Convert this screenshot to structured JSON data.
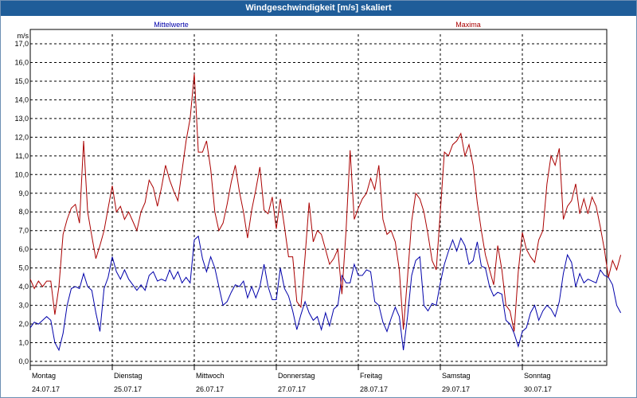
{
  "window": {
    "title": "Windgeschwindigkeit [m/s] skaliert"
  },
  "chart_data": {
    "type": "line",
    "unit_label": "m/s",
    "ylim": [
      0,
      17.5
    ],
    "yticks": [
      0,
      1,
      2,
      3,
      4,
      5,
      6,
      7,
      8,
      9,
      10,
      11,
      12,
      13,
      14,
      15,
      16,
      17
    ],
    "ytick_labels": [
      "0,0",
      "1,0",
      "2,0",
      "3,0",
      "4,0",
      "5,0",
      "6,0",
      "7,0",
      "8,0",
      "9,0",
      "10,0",
      "11,0",
      "12,0",
      "13,0",
      "14,0",
      "15,0",
      "16,0",
      "17,0"
    ],
    "xlim": [
      0,
      7.2
    ],
    "x_labels": [
      {
        "day": "Montag",
        "date": "24.07.17"
      },
      {
        "day": "Dienstag",
        "date": "25.07.17"
      },
      {
        "day": "Mittwoch",
        "date": "26.07.17"
      },
      {
        "day": "Donnerstag",
        "date": "27.07.17"
      },
      {
        "day": "Freitag",
        "date": "28.07.17"
      },
      {
        "day": "Samstag",
        "date": "29.07.17"
      },
      {
        "day": "Sonntag",
        "date": "30.07.17"
      }
    ],
    "grid": true,
    "colors": {
      "mittelwerte": "#0000aa",
      "maxima": "#aa0000",
      "grid": "#000000"
    },
    "series": [
      {
        "name": "Mittelwerte",
        "color": "#0000aa",
        "points": [
          [
            0,
            1.8
          ],
          [
            0.05,
            2.1
          ],
          [
            0.1,
            2.0
          ],
          [
            0.15,
            2.2
          ],
          [
            0.2,
            2.4
          ],
          [
            0.25,
            2.2
          ],
          [
            0.3,
            1.0
          ],
          [
            0.35,
            0.6
          ],
          [
            0.4,
            1.5
          ],
          [
            0.45,
            3.0
          ],
          [
            0.5,
            3.9
          ],
          [
            0.55,
            4.0
          ],
          [
            0.6,
            3.9
          ],
          [
            0.65,
            4.7
          ],
          [
            0.7,
            4.0
          ],
          [
            0.75,
            3.8
          ],
          [
            0.8,
            2.6
          ],
          [
            0.85,
            1.6
          ],
          [
            0.9,
            3.9
          ],
          [
            0.95,
            4.5
          ],
          [
            1.0,
            5.6
          ],
          [
            1.05,
            4.8
          ],
          [
            1.1,
            4.4
          ],
          [
            1.15,
            4.9
          ],
          [
            1.2,
            4.4
          ],
          [
            1.25,
            4.1
          ],
          [
            1.3,
            3.8
          ],
          [
            1.35,
            4.1
          ],
          [
            1.4,
            3.8
          ],
          [
            1.45,
            4.6
          ],
          [
            1.5,
            4.8
          ],
          [
            1.55,
            4.3
          ],
          [
            1.6,
            4.4
          ],
          [
            1.65,
            4.3
          ],
          [
            1.7,
            4.9
          ],
          [
            1.75,
            4.4
          ],
          [
            1.8,
            4.8
          ],
          [
            1.85,
            4.2
          ],
          [
            1.9,
            4.5
          ],
          [
            1.95,
            4.2
          ],
          [
            2.0,
            6.5
          ],
          [
            2.05,
            6.7
          ],
          [
            2.1,
            5.5
          ],
          [
            2.15,
            4.8
          ],
          [
            2.2,
            5.6
          ],
          [
            2.25,
            5.0
          ],
          [
            2.3,
            4.0
          ],
          [
            2.35,
            3.0
          ],
          [
            2.4,
            3.2
          ],
          [
            2.45,
            3.7
          ],
          [
            2.5,
            4.1
          ],
          [
            2.55,
            4.0
          ],
          [
            2.6,
            4.3
          ],
          [
            2.65,
            3.4
          ],
          [
            2.7,
            4.0
          ],
          [
            2.75,
            3.4
          ],
          [
            2.8,
            4.0
          ],
          [
            2.85,
            5.2
          ],
          [
            2.9,
            4.0
          ],
          [
            2.95,
            3.3
          ],
          [
            3.0,
            3.3
          ],
          [
            3.05,
            5.0
          ],
          [
            3.1,
            3.9
          ],
          [
            3.15,
            3.5
          ],
          [
            3.2,
            2.7
          ],
          [
            3.25,
            1.7
          ],
          [
            3.3,
            2.5
          ],
          [
            3.35,
            3.2
          ],
          [
            3.4,
            2.6
          ],
          [
            3.45,
            2.2
          ],
          [
            3.5,
            2.4
          ],
          [
            3.55,
            1.7
          ],
          [
            3.6,
            2.6
          ],
          [
            3.65,
            1.9
          ],
          [
            3.7,
            2.8
          ],
          [
            3.75,
            3.0
          ],
          [
            3.8,
            4.6
          ],
          [
            3.85,
            4.2
          ],
          [
            3.9,
            4.2
          ],
          [
            3.95,
            5.2
          ],
          [
            4.0,
            4.6
          ],
          [
            4.05,
            4.6
          ],
          [
            4.1,
            4.9
          ],
          [
            4.15,
            4.8
          ],
          [
            4.2,
            3.2
          ],
          [
            4.25,
            3.0
          ],
          [
            4.3,
            2.1
          ],
          [
            4.35,
            1.6
          ],
          [
            4.4,
            2.3
          ],
          [
            4.45,
            2.9
          ],
          [
            4.5,
            2.4
          ],
          [
            4.55,
            0.6
          ],
          [
            4.6,
            2.4
          ],
          [
            4.65,
            4.6
          ],
          [
            4.7,
            5.4
          ],
          [
            4.75,
            5.6
          ],
          [
            4.8,
            3.0
          ],
          [
            4.85,
            2.7
          ],
          [
            4.9,
            3.1
          ],
          [
            4.95,
            3.0
          ],
          [
            5.0,
            4.2
          ],
          [
            5.05,
            5.2
          ],
          [
            5.1,
            5.9
          ],
          [
            5.15,
            6.5
          ],
          [
            5.2,
            5.9
          ],
          [
            5.25,
            6.6
          ],
          [
            5.3,
            6.2
          ],
          [
            5.35,
            5.2
          ],
          [
            5.4,
            5.4
          ],
          [
            5.45,
            6.4
          ],
          [
            5.5,
            5.1
          ],
          [
            5.55,
            5.0
          ],
          [
            5.6,
            4.0
          ],
          [
            5.65,
            3.5
          ],
          [
            5.7,
            3.7
          ],
          [
            5.75,
            3.6
          ],
          [
            5.8,
            2.2
          ],
          [
            5.85,
            2.0
          ],
          [
            5.9,
            1.5
          ],
          [
            5.95,
            0.8
          ],
          [
            6.0,
            1.6
          ],
          [
            6.05,
            1.8
          ],
          [
            6.1,
            2.6
          ],
          [
            6.15,
            3.0
          ],
          [
            6.2,
            2.2
          ],
          [
            6.25,
            2.7
          ],
          [
            6.3,
            3.0
          ],
          [
            6.35,
            2.8
          ],
          [
            6.4,
            2.4
          ],
          [
            6.45,
            3.2
          ],
          [
            6.5,
            4.7
          ],
          [
            6.55,
            5.7
          ],
          [
            6.6,
            5.3
          ],
          [
            6.65,
            4.0
          ],
          [
            6.7,
            4.7
          ],
          [
            6.75,
            4.2
          ],
          [
            6.8,
            4.4
          ],
          [
            6.85,
            4.3
          ],
          [
            6.9,
            4.2
          ],
          [
            6.95,
            4.9
          ],
          [
            7.0,
            4.6
          ],
          [
            7.05,
            4.5
          ],
          [
            7.1,
            4.1
          ],
          [
            7.15,
            3.0
          ],
          [
            7.2,
            2.6
          ]
        ]
      },
      {
        "name": "Maxima",
        "color": "#aa0000",
        "points": [
          [
            0,
            4.4
          ],
          [
            0.05,
            3.9
          ],
          [
            0.1,
            4.3
          ],
          [
            0.15,
            4.0
          ],
          [
            0.2,
            4.3
          ],
          [
            0.25,
            4.3
          ],
          [
            0.3,
            2.5
          ],
          [
            0.35,
            4.0
          ],
          [
            0.4,
            6.8
          ],
          [
            0.45,
            7.6
          ],
          [
            0.5,
            8.2
          ],
          [
            0.55,
            8.4
          ],
          [
            0.6,
            7.4
          ],
          [
            0.65,
            11.8
          ],
          [
            0.7,
            8.0
          ],
          [
            0.75,
            6.7
          ],
          [
            0.8,
            5.5
          ],
          [
            0.85,
            6.2
          ],
          [
            0.9,
            7.0
          ],
          [
            0.95,
            8.2
          ],
          [
            1.0,
            9.4
          ],
          [
            1.05,
            8.0
          ],
          [
            1.1,
            8.3
          ],
          [
            1.15,
            7.6
          ],
          [
            1.2,
            8.0
          ],
          [
            1.25,
            7.5
          ],
          [
            1.3,
            7.0
          ],
          [
            1.35,
            8.0
          ],
          [
            1.4,
            8.5
          ],
          [
            1.45,
            9.7
          ],
          [
            1.5,
            9.3
          ],
          [
            1.55,
            8.3
          ],
          [
            1.6,
            9.3
          ],
          [
            1.65,
            10.5
          ],
          [
            1.7,
            9.7
          ],
          [
            1.75,
            9.1
          ],
          [
            1.8,
            8.6
          ],
          [
            1.85,
            10.2
          ],
          [
            1.9,
            11.8
          ],
          [
            1.95,
            13.0
          ],
          [
            2.0,
            15.4
          ],
          [
            2.05,
            11.2
          ],
          [
            2.1,
            11.2
          ],
          [
            2.15,
            11.8
          ],
          [
            2.2,
            10.3
          ],
          [
            2.25,
            8.0
          ],
          [
            2.3,
            7.0
          ],
          [
            2.35,
            7.4
          ],
          [
            2.4,
            8.4
          ],
          [
            2.45,
            9.6
          ],
          [
            2.5,
            10.5
          ],
          [
            2.55,
            9.1
          ],
          [
            2.6,
            8.0
          ],
          [
            2.65,
            6.6
          ],
          [
            2.7,
            8.1
          ],
          [
            2.75,
            9.2
          ],
          [
            2.8,
            10.4
          ],
          [
            2.85,
            8.1
          ],
          [
            2.9,
            7.9
          ],
          [
            2.95,
            8.8
          ],
          [
            3.0,
            7.1
          ],
          [
            3.05,
            8.7
          ],
          [
            3.1,
            7.2
          ],
          [
            3.15,
            5.6
          ],
          [
            3.2,
            5.6
          ],
          [
            3.25,
            3.2
          ],
          [
            3.3,
            2.9
          ],
          [
            3.35,
            5.6
          ],
          [
            3.4,
            8.5
          ],
          [
            3.45,
            6.4
          ],
          [
            3.5,
            7.0
          ],
          [
            3.55,
            6.8
          ],
          [
            3.6,
            6.0
          ],
          [
            3.65,
            5.2
          ],
          [
            3.7,
            5.5
          ],
          [
            3.75,
            6.0
          ],
          [
            3.8,
            3.6
          ],
          [
            3.85,
            7.0
          ],
          [
            3.9,
            11.3
          ],
          [
            3.95,
            7.6
          ],
          [
            4.0,
            8.2
          ],
          [
            4.05,
            8.7
          ],
          [
            4.1,
            9.0
          ],
          [
            4.15,
            9.8
          ],
          [
            4.2,
            9.2
          ],
          [
            4.25,
            10.5
          ],
          [
            4.3,
            7.6
          ],
          [
            4.35,
            6.8
          ],
          [
            4.4,
            7.0
          ],
          [
            4.45,
            6.4
          ],
          [
            4.5,
            4.9
          ],
          [
            4.55,
            1.7
          ],
          [
            4.6,
            4.5
          ],
          [
            4.65,
            7.5
          ],
          [
            4.7,
            9.0
          ],
          [
            4.75,
            8.7
          ],
          [
            4.8,
            8.0
          ],
          [
            4.85,
            6.8
          ],
          [
            4.9,
            5.4
          ],
          [
            4.95,
            4.9
          ],
          [
            5.0,
            8.0
          ],
          [
            5.05,
            11.2
          ],
          [
            5.1,
            11.0
          ],
          [
            5.15,
            11.6
          ],
          [
            5.2,
            11.8
          ],
          [
            5.25,
            12.2
          ],
          [
            5.3,
            11.0
          ],
          [
            5.35,
            11.6
          ],
          [
            5.4,
            10.5
          ],
          [
            5.45,
            8.5
          ],
          [
            5.5,
            7.0
          ],
          [
            5.55,
            5.7
          ],
          [
            5.6,
            4.9
          ],
          [
            5.65,
            4.1
          ],
          [
            5.7,
            6.2
          ],
          [
            5.75,
            4.9
          ],
          [
            5.8,
            3.0
          ],
          [
            5.85,
            2.7
          ],
          [
            5.9,
            1.6
          ],
          [
            5.95,
            4.8
          ],
          [
            6.0,
            6.9
          ],
          [
            6.05,
            6.0
          ],
          [
            6.1,
            5.6
          ],
          [
            6.15,
            5.3
          ],
          [
            6.2,
            6.5
          ],
          [
            6.25,
            7.0
          ],
          [
            6.3,
            9.5
          ],
          [
            6.35,
            11.0
          ],
          [
            6.4,
            10.5
          ],
          [
            6.45,
            11.4
          ],
          [
            6.5,
            7.6
          ],
          [
            6.55,
            8.3
          ],
          [
            6.6,
            8.6
          ],
          [
            6.65,
            9.5
          ],
          [
            6.7,
            7.9
          ],
          [
            6.75,
            8.7
          ],
          [
            6.8,
            7.9
          ],
          [
            6.85,
            8.8
          ],
          [
            6.9,
            8.3
          ],
          [
            6.95,
            7.2
          ],
          [
            7.0,
            6.0
          ],
          [
            7.05,
            4.5
          ],
          [
            7.1,
            5.4
          ],
          [
            7.15,
            4.9
          ],
          [
            7.2,
            5.7
          ]
        ]
      }
    ]
  },
  "legend": {
    "mittelwerte_label": "Mittelwerte",
    "maxima_label": "Maxima"
  }
}
